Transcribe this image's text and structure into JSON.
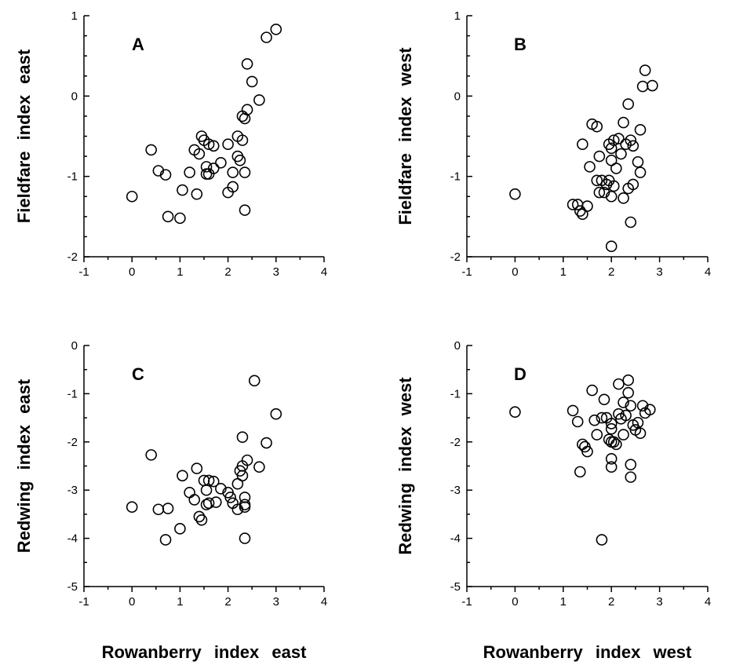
{
  "chart_data": [
    {
      "type": "scatter",
      "panel": "A",
      "xlabel": "Rowanberry index east",
      "ylabel": "Fieldfare index east",
      "xlim": [
        -1,
        4
      ],
      "ylim": [
        -2,
        1
      ],
      "xticks": [
        -1,
        0,
        1,
        2,
        3,
        4
      ],
      "yticks": [
        -2,
        -1,
        0,
        1
      ],
      "points": [
        [
          0.0,
          -1.25
        ],
        [
          0.4,
          -0.67
        ],
        [
          0.55,
          -0.93
        ],
        [
          0.7,
          -0.98
        ],
        [
          0.75,
          -1.5
        ],
        [
          1.0,
          -1.52
        ],
        [
          1.05,
          -1.17
        ],
        [
          1.2,
          -0.95
        ],
        [
          1.3,
          -0.67
        ],
        [
          1.35,
          -1.22
        ],
        [
          1.4,
          -0.72
        ],
        [
          1.45,
          -0.5
        ],
        [
          1.5,
          -0.55
        ],
        [
          1.55,
          -0.88
        ],
        [
          1.55,
          -0.97
        ],
        [
          1.6,
          -0.97
        ],
        [
          1.6,
          -0.6
        ],
        [
          1.7,
          -0.62
        ],
        [
          1.7,
          -0.9
        ],
        [
          1.85,
          -0.83
        ],
        [
          2.0,
          -0.6
        ],
        [
          2.0,
          -1.2
        ],
        [
          2.1,
          -1.13
        ],
        [
          2.1,
          -0.95
        ],
        [
          2.2,
          -0.5
        ],
        [
          2.2,
          -0.75
        ],
        [
          2.25,
          -0.8
        ],
        [
          2.3,
          -0.25
        ],
        [
          2.3,
          -0.55
        ],
        [
          2.35,
          -0.28
        ],
        [
          2.35,
          -0.95
        ],
        [
          2.35,
          -1.42
        ],
        [
          2.4,
          -0.17
        ],
        [
          2.4,
          0.4
        ],
        [
          2.5,
          0.18
        ],
        [
          2.65,
          -0.05
        ],
        [
          2.8,
          0.73
        ],
        [
          3.0,
          0.83
        ]
      ]
    },
    {
      "type": "scatter",
      "panel": "B",
      "xlabel": "Rowanberry index west",
      "ylabel": "Fieldfare index west",
      "xlim": [
        -1,
        4
      ],
      "ylim": [
        -2,
        1
      ],
      "xticks": [
        -1,
        0,
        1,
        2,
        3,
        4
      ],
      "yticks": [
        -2,
        -1,
        0,
        1
      ],
      "points": [
        [
          0.0,
          -1.22
        ],
        [
          1.2,
          -1.35
        ],
        [
          1.3,
          -1.35
        ],
        [
          1.35,
          -1.43
        ],
        [
          1.4,
          -0.6
        ],
        [
          1.4,
          -1.47
        ],
        [
          1.5,
          -1.37
        ],
        [
          1.55,
          -0.88
        ],
        [
          1.6,
          -0.35
        ],
        [
          1.7,
          -1.05
        ],
        [
          1.7,
          -0.38
        ],
        [
          1.75,
          -0.75
        ],
        [
          1.75,
          -1.2
        ],
        [
          1.8,
          -1.05
        ],
        [
          1.85,
          -1.2
        ],
        [
          1.9,
          -1.1
        ],
        [
          1.95,
          -1.05
        ],
        [
          1.95,
          -0.6
        ],
        [
          2.0,
          -0.8
        ],
        [
          2.0,
          -0.65
        ],
        [
          2.0,
          -1.25
        ],
        [
          2.0,
          -1.87
        ],
        [
          2.05,
          -0.55
        ],
        [
          2.05,
          -1.12
        ],
        [
          2.1,
          -0.9
        ],
        [
          2.15,
          -0.53
        ],
        [
          2.2,
          -0.72
        ],
        [
          2.25,
          -0.33
        ],
        [
          2.25,
          -1.27
        ],
        [
          2.3,
          -0.6
        ],
        [
          2.35,
          -1.15
        ],
        [
          2.35,
          -0.1
        ],
        [
          2.4,
          -0.55
        ],
        [
          2.4,
          -1.57
        ],
        [
          2.45,
          -0.62
        ],
        [
          2.45,
          -1.1
        ],
        [
          2.55,
          -0.82
        ],
        [
          2.6,
          -0.42
        ],
        [
          2.6,
          -0.95
        ],
        [
          2.65,
          0.12
        ],
        [
          2.7,
          0.32
        ],
        [
          2.85,
          0.13
        ]
      ]
    },
    {
      "type": "scatter",
      "panel": "C",
      "xlabel": "Rowanberry index east",
      "ylabel": "Redwing index east",
      "xlim": [
        -1,
        4
      ],
      "ylim": [
        -5,
        0
      ],
      "xticks": [
        -1,
        0,
        1,
        2,
        3,
        4
      ],
      "yticks": [
        -5,
        -4,
        -3,
        -2,
        -1,
        0
      ],
      "points": [
        [
          0.0,
          -3.35
        ],
        [
          0.4,
          -2.27
        ],
        [
          0.55,
          -3.4
        ],
        [
          0.7,
          -4.03
        ],
        [
          0.75,
          -3.38
        ],
        [
          1.0,
          -3.8
        ],
        [
          1.05,
          -2.7
        ],
        [
          1.2,
          -3.05
        ],
        [
          1.3,
          -3.2
        ],
        [
          1.35,
          -2.55
        ],
        [
          1.4,
          -3.55
        ],
        [
          1.45,
          -3.62
        ],
        [
          1.5,
          -2.8
        ],
        [
          1.55,
          -3.0
        ],
        [
          1.55,
          -3.3
        ],
        [
          1.6,
          -3.27
        ],
        [
          1.6,
          -2.8
        ],
        [
          1.7,
          -2.82
        ],
        [
          1.75,
          -3.25
        ],
        [
          1.85,
          -2.97
        ],
        [
          2.0,
          -3.05
        ],
        [
          2.05,
          -3.15
        ],
        [
          2.1,
          -3.27
        ],
        [
          2.2,
          -3.4
        ],
        [
          2.2,
          -2.87
        ],
        [
          2.25,
          -2.6
        ],
        [
          2.3,
          -2.5
        ],
        [
          2.3,
          -1.9
        ],
        [
          2.3,
          -2.7
        ],
        [
          2.35,
          -3.3
        ],
        [
          2.35,
          -3.35
        ],
        [
          2.35,
          -3.15
        ],
        [
          2.35,
          -4.0
        ],
        [
          2.4,
          -2.38
        ],
        [
          2.55,
          -0.73
        ],
        [
          2.65,
          -2.52
        ],
        [
          2.8,
          -2.02
        ],
        [
          3.0,
          -1.42
        ]
      ]
    },
    {
      "type": "scatter",
      "panel": "D",
      "xlabel": "Rowanberry index west",
      "ylabel": "Redwing index west",
      "xlim": [
        -1,
        4
      ],
      "ylim": [
        -5,
        0
      ],
      "xticks": [
        -1,
        0,
        1,
        2,
        3,
        4
      ],
      "yticks": [
        -5,
        -4,
        -3,
        -2,
        -1,
        0
      ],
      "points": [
        [
          0.0,
          -1.38
        ],
        [
          1.2,
          -1.35
        ],
        [
          1.3,
          -1.58
        ],
        [
          1.35,
          -2.62
        ],
        [
          1.4,
          -2.05
        ],
        [
          1.45,
          -2.1
        ],
        [
          1.5,
          -2.2
        ],
        [
          1.6,
          -0.93
        ],
        [
          1.65,
          -1.55
        ],
        [
          1.7,
          -1.85
        ],
        [
          1.8,
          -4.03
        ],
        [
          1.8,
          -1.5
        ],
        [
          1.85,
          -1.12
        ],
        [
          1.9,
          -1.5
        ],
        [
          1.95,
          -1.95
        ],
        [
          2.0,
          -2.0
        ],
        [
          2.0,
          -1.62
        ],
        [
          2.0,
          -1.73
        ],
        [
          2.0,
          -2.35
        ],
        [
          2.0,
          -2.52
        ],
        [
          2.05,
          -2.0
        ],
        [
          2.1,
          -2.05
        ],
        [
          2.15,
          -1.42
        ],
        [
          2.15,
          -0.8
        ],
        [
          2.2,
          -1.52
        ],
        [
          2.25,
          -1.85
        ],
        [
          2.25,
          -1.18
        ],
        [
          2.3,
          -1.45
        ],
        [
          2.35,
          -0.72
        ],
        [
          2.35,
          -0.98
        ],
        [
          2.4,
          -1.25
        ],
        [
          2.4,
          -2.47
        ],
        [
          2.4,
          -2.73
        ],
        [
          2.45,
          -1.65
        ],
        [
          2.5,
          -1.75
        ],
        [
          2.55,
          -1.6
        ],
        [
          2.6,
          -1.82
        ],
        [
          2.65,
          -1.25
        ],
        [
          2.7,
          -1.4
        ],
        [
          2.8,
          -1.33
        ]
      ]
    }
  ]
}
